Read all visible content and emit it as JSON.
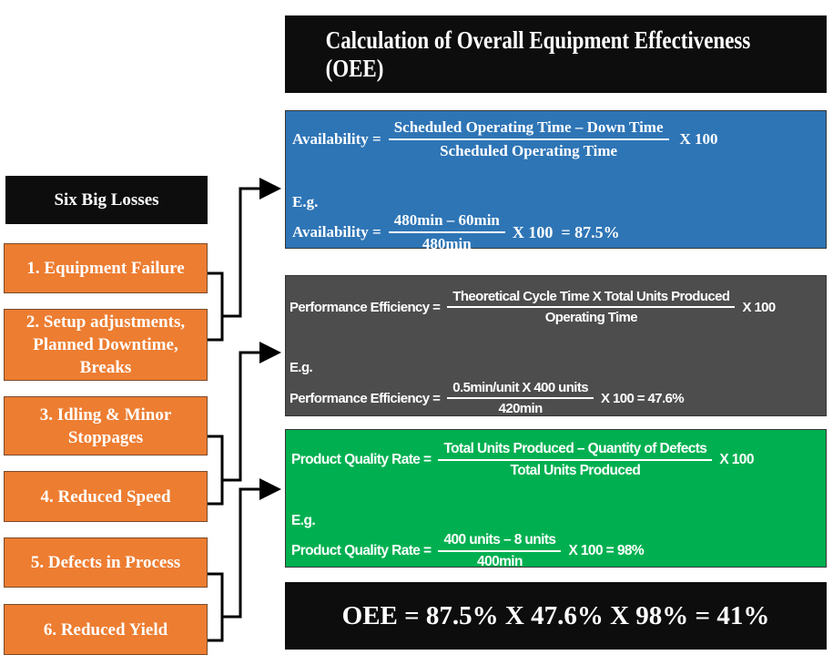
{
  "title": "Calculation of Overall Equipment Effectiveness (OEE)",
  "losses": {
    "heading": "Six Big Losses",
    "items": [
      "1. Equipment Failure",
      "2. Setup adjustments, Planned Downtime, Breaks",
      "3. Idling & Minor Stoppages",
      "4. Reduced Speed",
      "5. Defects in Process",
      "6. Reduced Yield"
    ]
  },
  "availability": {
    "color": "#2e75b6",
    "label": "Availability =",
    "numerator": "Scheduled Operating Time – Down Time",
    "denominator": "Scheduled Operating Time",
    "multiplier": "X 100",
    "eg": "E.g.",
    "ex_label": "Availability =",
    "ex_numerator": "480min – 60min",
    "ex_denominator": "480min",
    "ex_result": "X 100  = 87.5%"
  },
  "performance": {
    "color": "#4d4d4d",
    "label": "Performance Efficiency =",
    "numerator": "Theoretical Cycle Time X Total Units Produced",
    "denominator": "Operating Time",
    "multiplier": "X 100",
    "eg": "E.g.",
    "ex_label": "Performance Efficiency =",
    "ex_numerator": "0.5min/unit X 400 units",
    "ex_denominator": "420min",
    "ex_result": "X 100 = 47.6%"
  },
  "quality": {
    "color": "#00b050",
    "label": "Product Quality Rate =",
    "numerator": "Total Units Produced – Quantity of Defects",
    "denominator": "Total Units Produced",
    "multiplier": "X 100",
    "eg": "E.g.",
    "ex_label": "Product Quality Rate =",
    "ex_numerator": "400 units – 8 units",
    "ex_denominator": "400min",
    "ex_result": "X 100 = 98%"
  },
  "oee": "OEE = 87.5% X 47.6% X 98% = 41%"
}
